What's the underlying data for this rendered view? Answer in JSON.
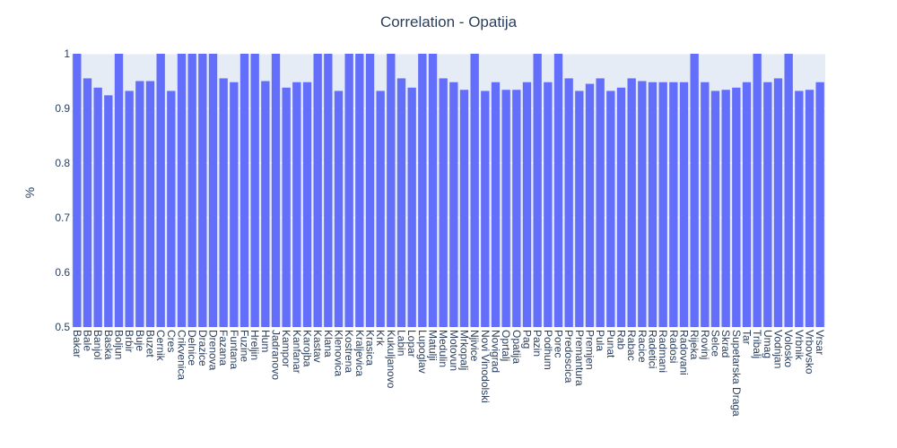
{
  "chart_data": {
    "type": "bar",
    "title": "Correlation - Opatija",
    "xlabel": "",
    "ylabel": "%",
    "ylim": [
      0.5,
      1.0
    ],
    "yticks": [
      0.5,
      0.6,
      0.7,
      0.8,
      0.9,
      1
    ],
    "ytick_labels": [
      "0.5",
      "0.6",
      "0.7",
      "0.8",
      "0.9",
      "1"
    ],
    "grid": true,
    "bar_color": "#636efa",
    "plot_bg": "#e5ecf6",
    "categories": [
      "Bakar",
      "Bale",
      "Banjol",
      "Baska",
      "Boljun",
      "Brbir",
      "Buje",
      "Buzet",
      "Cernik",
      "Cres",
      "Crikvenica",
      "Delnice",
      "Drazice",
      "Drenova",
      "Fazana",
      "Funtana",
      "Fuzine",
      "Hreljin",
      "Hum",
      "Jadranovo",
      "Kampor",
      "Kanfanar",
      "Karojba",
      "Kastav",
      "Klana",
      "Klenovica",
      "Kostrena",
      "Kraljevica",
      "Krasica",
      "Krk",
      "Kukuljanovo",
      "Labin",
      "Lopar",
      "Lupoglav",
      "Matulji",
      "Medulin",
      "Motovun",
      "Mrkopalj",
      "Njivice",
      "Novi Vinodolski",
      "Novigrad",
      "Oprtalj",
      "Opatija",
      "Pag",
      "Pazin",
      "Podhum",
      "Porec",
      "Predoscica",
      "Premantura",
      "Premjen",
      "Pula",
      "Punat",
      "Rab",
      "Rabac",
      "Racice",
      "Radetici",
      "Radmani",
      "Radosi",
      "Radovani",
      "Rijeka",
      "Rovinj",
      "Selce",
      "Skrad",
      "Supetarska Draga",
      "Tar",
      "Tribalj",
      "Umag",
      "Vodnjan",
      "Volosko",
      "Vrbnik",
      "Vrbovsko",
      "Vrsar"
    ],
    "tick_labels": [
      "Bakar",
      "Bale",
      "Banjol",
      "Baska",
      "Boljun",
      "Brbir",
      "Buje",
      "Buzet",
      "Cernik",
      "Cres",
      "Crikvenica",
      "Delnice",
      "Drazice",
      "Drenova",
      "Fazana",
      "Funtana",
      "Fuzine",
      "Hreljin",
      "Hum",
      "Jadranovo",
      "Kampor",
      "Kanfanar",
      "Karojba",
      "Kastav",
      "Klana",
      "Klenovica",
      "Kostrena",
      "Kraljevica",
      "Krasica",
      "Krk",
      "Kukuljanovo",
      "Labin",
      "Lopar",
      "Lupoglav",
      "Matulji",
      "Medulin",
      "Motovun",
      "Mrkopalj",
      "Njivice",
      "Novi Vinodolski",
      "Novigrad",
      "Oprtalj",
      "Opatija",
      "Pag",
      "Pazin",
      "Podhum",
      "Porec",
      "Predoscica",
      "Premantura",
      "Premjen",
      "Pula",
      "Punat",
      "Rab",
      "Rabac",
      "Racice",
      "Radetici",
      "Radmani",
      "Radosi",
      "Radovani",
      "Rijeka",
      "Rovinj",
      "Selce",
      "Skrad",
      "Supetarska Draga",
      "Tar",
      "Tribalj",
      "Umag",
      "Vodnjan",
      "Volosko",
      "Vrbnik",
      "Vrbovsko",
      "Vrsar"
    ],
    "values": [
      1.0,
      0.955,
      0.938,
      0.924,
      1.0,
      0.932,
      0.95,
      0.95,
      1.0,
      0.932,
      1.0,
      1.0,
      1.0,
      1.0,
      0.955,
      0.948,
      1.0,
      1.0,
      0.95,
      1.0,
      0.938,
      0.948,
      0.948,
      1.0,
      1.0,
      0.932,
      1.0,
      1.0,
      1.0,
      0.932,
      1.0,
      0.955,
      0.938,
      1.0,
      1.0,
      0.955,
      0.948,
      0.934,
      1.0,
      0.932,
      0.948,
      0.934,
      0.934,
      0.948,
      1.0,
      0.948,
      1.0,
      0.955,
      0.932,
      0.945,
      0.955,
      0.932,
      0.938,
      0.955,
      0.95,
      0.948,
      0.948,
      0.948,
      0.948,
      1.0,
      0.948,
      0.932,
      0.934,
      0.938,
      0.948,
      1.0,
      0.948,
      0.955,
      1.0,
      0.932,
      0.934,
      0.948
    ]
  }
}
